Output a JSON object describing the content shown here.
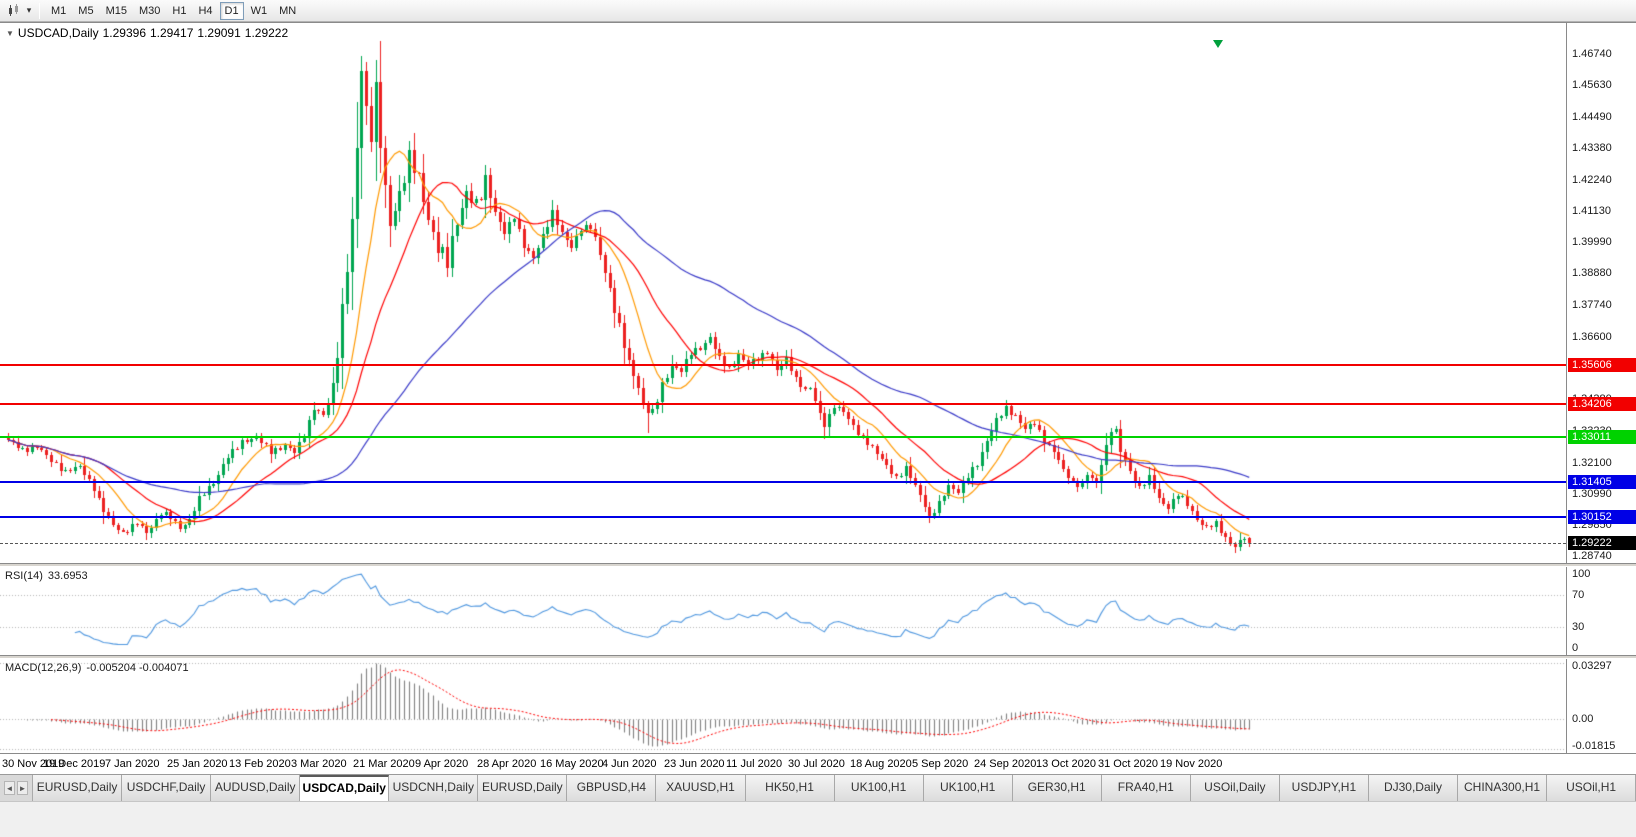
{
  "toolbar": {
    "timeframes": [
      "M1",
      "M5",
      "M15",
      "M30",
      "H1",
      "H4",
      "D1",
      "W1",
      "MN"
    ],
    "active_timeframe": "D1",
    "caret_icon": "▾"
  },
  "chart": {
    "header": {
      "collapse_icon": "▼",
      "symbol": "USDCAD,Daily",
      "open": "1.29396",
      "high": "1.29417",
      "low": "1.29091",
      "close": "1.29222"
    },
    "price_range": {
      "min": 1.285,
      "max": 1.4785
    },
    "price_axis_labels": [
      "1.46740",
      "1.45630",
      "1.44490",
      "1.43380",
      "1.42240",
      "1.41130",
      "1.39990",
      "1.38880",
      "1.37740",
      "1.36600",
      "1.35490",
      "1.34380",
      "1.33230",
      "1.32100",
      "1.30990",
      "1.29850",
      "1.28740"
    ],
    "hlines": [
      {
        "price": 1.35606,
        "label": "1.35606",
        "color": "#f20000",
        "thickness": 2
      },
      {
        "price": 1.34206,
        "label": "1.34206",
        "color": "#f20000",
        "thickness": 2
      },
      {
        "price": 1.33011,
        "label": "1.33011",
        "color": "#00d200",
        "thickness": 2
      },
      {
        "price": 1.31405,
        "label": "1.31405",
        "color": "#0000e6",
        "thickness": 2
      },
      {
        "price": 1.30152,
        "label": "1.30152",
        "color": "#0000e6",
        "thickness": 2
      }
    ],
    "current_price": {
      "price": 1.29222,
      "label": "1.29222",
      "badge_color": "#000000"
    },
    "dates": [
      "30 Nov 2019",
      "19 Dec 2019",
      "7 Jan 2020",
      "25 Jan 2020",
      "13 Feb 2020",
      "3 Mar 2020",
      "21 Mar 2020",
      "9 Apr 2020",
      "28 Apr 2020",
      "16 May 2020",
      "4 Jun 2020",
      "23 Jun 2020",
      "11 Jul 2020",
      "30 Jul 2020",
      "18 Aug 2020",
      "5 Sep 2020",
      "24 Sep 2020",
      "13 Oct 2020",
      "31 Oct 2020",
      "19 Nov 2020"
    ],
    "date_indices": [
      0,
      13,
      26,
      39,
      52,
      65,
      78,
      91,
      104,
      117,
      130,
      143,
      156,
      169,
      182,
      195,
      208,
      221,
      234,
      247
    ]
  },
  "rsi": {
    "name": "RSI(14)",
    "value": "33.6953",
    "period": 14,
    "axis_labels": [
      "100",
      "70",
      "30",
      "0"
    ],
    "levels": [
      70,
      30
    ],
    "line_color": "#4f97df"
  },
  "macd": {
    "name": "MACD(12,26,9)",
    "value": "-0.005204 -0.004071",
    "fast": 12,
    "slow": 26,
    "signal": 9,
    "axis_top": "0.03297",
    "axis_zero": "0.00",
    "axis_bottom": "-0.01815",
    "bar_color": "#808080",
    "signal_color": "#ff0000"
  },
  "tabs": {
    "scroll_left_icon": "◄",
    "scroll_right_icon": "►",
    "active_index": 3,
    "items": [
      "EURUSD,Daily",
      "USDCHF,Daily",
      "AUDUSD,Daily",
      "USDCAD,Daily",
      "USDCNH,Daily",
      "EURUSD,Daily",
      "GBPUSD,H4",
      "XAUUSD,H1",
      "HK50,H1",
      "UK100,H1",
      "UK100,H1",
      "GER30,H1",
      "FRA40,H1",
      "USOil,Daily",
      "USDJPY,H1",
      "DJ30,Daily",
      "CHINA300,H1",
      "USOil,H1"
    ]
  },
  "chart_data": {
    "type": "candlestick",
    "symbol": "USDCAD",
    "timeframe": "Daily",
    "candles_count": 261,
    "x_range": [
      "30 Nov 2019",
      "30 Nov 2020"
    ],
    "ylim": [
      1.285,
      1.4785
    ],
    "anchors": [
      [
        0,
        1.329
      ],
      [
        3,
        1.3255
      ],
      [
        6,
        1.3268
      ],
      [
        9,
        1.3215
      ],
      [
        12,
        1.318
      ],
      [
        15,
        1.3195
      ],
      [
        18,
        1.312
      ],
      [
        20,
        1.3035
      ],
      [
        22,
        1.2985
      ],
      [
        24,
        1.296
      ],
      [
        27,
        1.2992
      ],
      [
        29,
        1.2958
      ],
      [
        32,
        1.303
      ],
      [
        34,
        1.301
      ],
      [
        36,
        1.2975
      ],
      [
        38,
        1.3005
      ],
      [
        40,
        1.308
      ],
      [
        43,
        1.314
      ],
      [
        46,
        1.323
      ],
      [
        49,
        1.3285
      ],
      [
        52,
        1.33
      ],
      [
        55,
        1.325
      ],
      [
        58,
        1.327
      ],
      [
        60,
        1.3245
      ],
      [
        62,
        1.331
      ],
      [
        64,
        1.3405
      ],
      [
        66,
        1.337
      ],
      [
        68,
        1.348
      ],
      [
        70,
        1.376
      ],
      [
        72,
        1.406
      ],
      [
        73,
        1.433
      ],
      [
        74,
        1.462
      ],
      [
        75,
        1.448
      ],
      [
        76,
        1.439
      ],
      [
        77,
        1.455
      ],
      [
        78,
        1.435
      ],
      [
        79,
        1.418
      ],
      [
        80,
        1.406
      ],
      [
        82,
        1.418
      ],
      [
        84,
        1.43
      ],
      [
        86,
        1.422
      ],
      [
        88,
        1.409
      ],
      [
        90,
        1.398
      ],
      [
        92,
        1.392
      ],
      [
        94,
        1.408
      ],
      [
        96,
        1.418
      ],
      [
        98,
        1.412
      ],
      [
        100,
        1.422
      ],
      [
        102,
        1.411
      ],
      [
        104,
        1.403
      ],
      [
        106,
        1.409
      ],
      [
        108,
        1.399
      ],
      [
        110,
        1.394
      ],
      [
        112,
        1.402
      ],
      [
        114,
        1.411
      ],
      [
        116,
        1.403
      ],
      [
        118,
        1.398
      ],
      [
        120,
        1.405
      ],
      [
        122,
        1.406
      ],
      [
        124,
        1.395
      ],
      [
        126,
        1.383
      ],
      [
        128,
        1.37
      ],
      [
        130,
        1.356
      ],
      [
        132,
        1.348
      ],
      [
        133,
        1.342
      ],
      [
        135,
        1.339
      ],
      [
        137,
        1.348
      ],
      [
        139,
        1.356
      ],
      [
        141,
        1.354
      ],
      [
        143,
        1.36
      ],
      [
        145,
        1.362
      ],
      [
        147,
        1.366
      ],
      [
        149,
        1.358
      ],
      [
        151,
        1.3545
      ],
      [
        153,
        1.36
      ],
      [
        155,
        1.356
      ],
      [
        157,
        1.358
      ],
      [
        159,
        1.361
      ],
      [
        161,
        1.354
      ],
      [
        163,
        1.358
      ],
      [
        165,
        1.351
      ],
      [
        167,
        1.347
      ],
      [
        168,
        1.3475
      ],
      [
        170,
        1.338
      ],
      [
        171,
        1.3345
      ],
      [
        173,
        1.3415
      ],
      [
        175,
        1.339
      ],
      [
        177,
        1.334
      ],
      [
        179,
        1.33
      ],
      [
        181,
        1.326
      ],
      [
        183,
        1.322
      ],
      [
        184,
        1.32
      ],
      [
        186,
        1.3155
      ],
      [
        188,
        1.3185
      ],
      [
        190,
        1.313
      ],
      [
        192,
        1.306
      ],
      [
        193,
        1.301
      ],
      [
        195,
        1.306
      ],
      [
        197,
        1.313
      ],
      [
        199,
        1.3105
      ],
      [
        201,
        1.316
      ],
      [
        203,
        1.3205
      ],
      [
        205,
        1.329
      ],
      [
        207,
        1.336
      ],
      [
        209,
        1.3405
      ],
      [
        211,
        1.338
      ],
      [
        213,
        1.333
      ],
      [
        215,
        1.335
      ],
      [
        217,
        1.329
      ],
      [
        219,
        1.325
      ],
      [
        221,
        1.318
      ],
      [
        223,
        1.314
      ],
      [
        225,
        1.313
      ],
      [
        226,
        1.3165
      ],
      [
        228,
        1.3135
      ],
      [
        229,
        1.321
      ],
      [
        231,
        1.333
      ],
      [
        232,
        1.332
      ],
      [
        233,
        1.325
      ],
      [
        235,
        1.318
      ],
      [
        237,
        1.312
      ],
      [
        239,
        1.3155
      ],
      [
        241,
        1.308
      ],
      [
        243,
        1.305
      ],
      [
        245,
        1.3095
      ],
      [
        247,
        1.306
      ],
      [
        249,
        1.301
      ],
      [
        251,
        1.2975
      ],
      [
        253,
        1.299
      ],
      [
        255,
        1.294
      ],
      [
        257,
        1.291
      ],
      [
        259,
        1.294
      ],
      [
        260,
        1.29222
      ]
    ],
    "noise": {
      "base": 0.0012,
      "regions": [
        [
          66,
          100,
          0.0035
        ],
        [
          122,
          140,
          0.002
        ]
      ]
    },
    "overrides": {
      "74": {
        "h": 1.4668
      },
      "134": {
        "l": 1.3315
      },
      "193": {
        "l": 1.2994
      },
      "257": {
        "l": 1.2885
      },
      "260": {
        "o": 1.29396,
        "h": 1.29417,
        "l": 1.29091,
        "c": 1.29222
      }
    },
    "moving_averages": [
      {
        "period": 10,
        "color": "#ff9900"
      },
      {
        "period": 21,
        "color": "#ff0000"
      },
      {
        "period": 55,
        "color": "#3a3ac8"
      }
    ],
    "candle_up_color": "#00a651",
    "candle_down_color": "#ec2121"
  }
}
